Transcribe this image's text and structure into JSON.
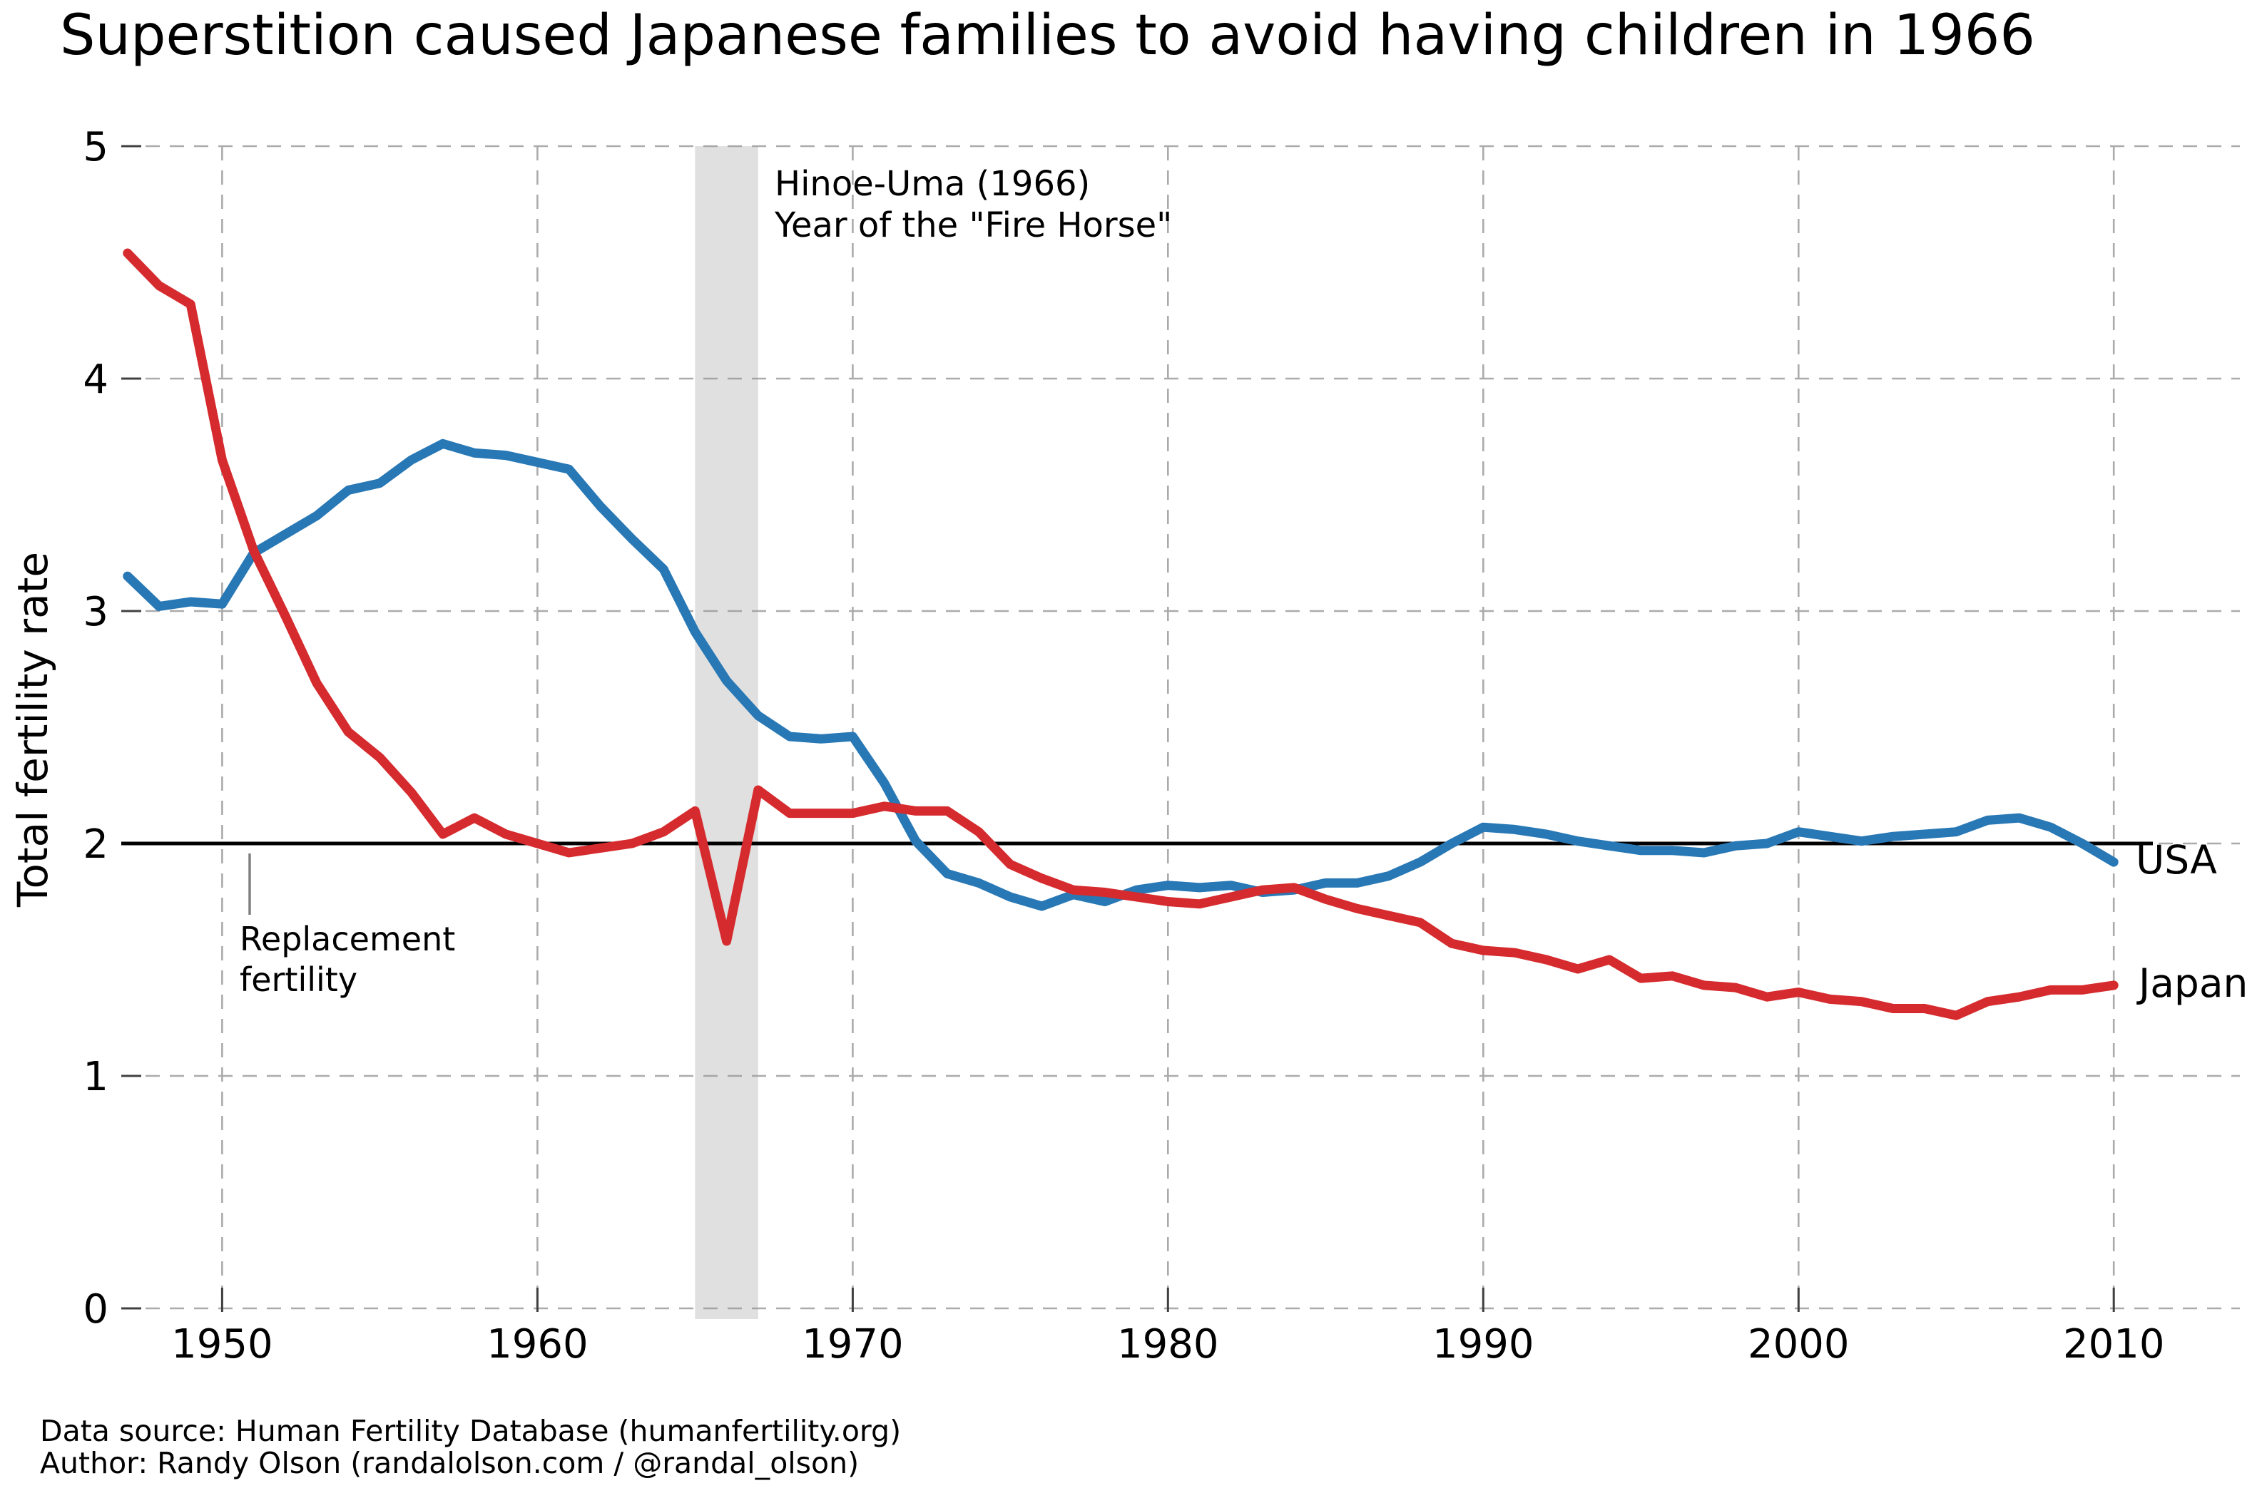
{
  "title": "Superstition caused Japanese families to avoid having children in 1966",
  "footer": {
    "line1": "Data source: Human Fertility Database (humanfertility.org)",
    "line2": "Author: Randy Olson (randalolson.com / @randal_olson)"
  },
  "chart_data": {
    "type": "line",
    "title": "Superstition caused Japanese families to avoid having children in 1966",
    "xlabel": "",
    "ylabel": "Total fertility rate",
    "ylim": [
      0,
      5
    ],
    "xlim": [
      1946.8,
      2014
    ],
    "yticks": [
      0,
      1,
      2,
      3,
      4,
      5
    ],
    "xticks": [
      1950,
      1960,
      1970,
      1980,
      1990,
      2000,
      2010
    ],
    "grid": "dashed gray, both axes",
    "legend": "direct line-end labels at right",
    "x": [
      1947,
      1948,
      1949,
      1950,
      1951,
      1952,
      1953,
      1954,
      1955,
      1956,
      1957,
      1958,
      1959,
      1960,
      1961,
      1962,
      1963,
      1964,
      1965,
      1966,
      1967,
      1968,
      1969,
      1970,
      1971,
      1972,
      1973,
      1974,
      1975,
      1976,
      1977,
      1978,
      1979,
      1980,
      1981,
      1982,
      1983,
      1984,
      1985,
      1986,
      1987,
      1988,
      1989,
      1990,
      1991,
      1992,
      1993,
      1994,
      1995,
      1996,
      1997,
      1998,
      1999,
      2000,
      2001,
      2002,
      2003,
      2004,
      2005,
      2006,
      2007,
      2008,
      2009,
      2010
    ],
    "series": [
      {
        "name": "USA",
        "color": "#2878b5",
        "values": [
          3.15,
          3.02,
          3.04,
          3.03,
          3.25,
          3.33,
          3.41,
          3.52,
          3.55,
          3.65,
          3.72,
          3.68,
          3.67,
          3.64,
          3.61,
          3.45,
          3.31,
          3.18,
          2.91,
          2.7,
          2.55,
          2.46,
          2.45,
          2.46,
          2.26,
          2.01,
          1.87,
          1.83,
          1.77,
          1.73,
          1.78,
          1.75,
          1.8,
          1.82,
          1.81,
          1.82,
          1.79,
          1.8,
          1.83,
          1.83,
          1.86,
          1.92,
          2.0,
          2.07,
          2.06,
          2.04,
          2.01,
          1.99,
          1.97,
          1.97,
          1.96,
          1.99,
          2.0,
          2.05,
          2.03,
          2.01,
          2.03,
          2.04,
          2.05,
          2.1,
          2.11,
          2.07,
          2.0,
          1.92
        ]
      },
      {
        "name": "Japan",
        "color": "#d62b2e",
        "values": [
          4.54,
          4.4,
          4.32,
          3.65,
          3.26,
          2.98,
          2.69,
          2.48,
          2.37,
          2.22,
          2.04,
          2.11,
          2.04,
          2.0,
          1.96,
          1.98,
          2.0,
          2.05,
          2.14,
          1.58,
          2.23,
          2.13,
          2.13,
          2.13,
          2.16,
          2.14,
          2.14,
          2.05,
          1.91,
          1.85,
          1.8,
          1.79,
          1.77,
          1.75,
          1.74,
          1.77,
          1.8,
          1.81,
          1.76,
          1.72,
          1.69,
          1.66,
          1.57,
          1.54,
          1.53,
          1.5,
          1.46,
          1.5,
          1.42,
          1.43,
          1.39,
          1.38,
          1.34,
          1.36,
          1.33,
          1.32,
          1.29,
          1.29,
          1.26,
          1.32,
          1.34,
          1.37,
          1.37,
          1.39
        ]
      }
    ],
    "reference_line": {
      "value": 2.0,
      "color": "#000000",
      "label_line1": "Replacement",
      "label_line2": "fertility"
    },
    "highlight_band": {
      "from": 1965,
      "to": 1967,
      "color": "#999999",
      "opacity": 0.3,
      "label_line1": "Hinoe-Uma (1966)",
      "label_line2": "Year of the \"Fire Horse\""
    },
    "gridline_color": "#ababab"
  }
}
